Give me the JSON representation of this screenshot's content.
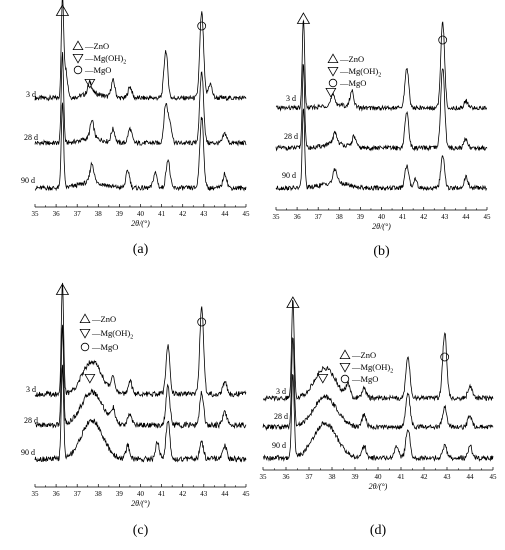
{
  "chart_data": [
    {
      "type": "line",
      "panel_caption": "(a)",
      "xlabel": "2θ/(°)",
      "xlim": [
        35,
        45
      ],
      "x_ticks": [
        "35",
        "36",
        "37",
        "38",
        "39",
        "40",
        "41",
        "42",
        "43",
        "44",
        "45"
      ],
      "series": [
        {
          "name": "3 d",
          "peaks": [
            [
              36.3,
              1.0
            ],
            [
              36.45,
              0.3
            ],
            [
              37.6,
              0.12
            ],
            [
              38.7,
              0.18
            ],
            [
              39.5,
              0.12
            ],
            [
              41.2,
              0.5
            ],
            [
              42.9,
              0.9
            ],
            [
              43.3,
              0.15
            ]
          ],
          "broad": [
            [
              37.7,
              0.05,
              0.45
            ]
          ]
        },
        {
          "name": "28 d",
          "peaks": [
            [
              36.3,
              0.95
            ],
            [
              37.7,
              0.18
            ],
            [
              38.7,
              0.14
            ],
            [
              39.5,
              0.15
            ],
            [
              41.2,
              0.4
            ],
            [
              41.4,
              0.2
            ],
            [
              42.9,
              0.75
            ],
            [
              44.0,
              0.1
            ]
          ],
          "broad": [
            [
              37.7,
              0.05,
              0.5
            ]
          ]
        },
        {
          "name": "90 d",
          "peaks": [
            [
              36.3,
              0.9
            ],
            [
              37.7,
              0.2
            ],
            [
              39.4,
              0.18
            ],
            [
              40.7,
              0.16
            ],
            [
              41.3,
              0.3
            ],
            [
              42.9,
              0.75
            ],
            [
              44.0,
              0.15
            ]
          ],
          "broad": [
            [
              37.7,
              0.06,
              0.6
            ]
          ]
        }
      ],
      "legend": [
        {
          "marker": "triangle-up",
          "label": "—ZnO"
        },
        {
          "marker": "triangle-down",
          "label": "—Mg(OH)",
          "sub": "2"
        },
        {
          "marker": "circle",
          "label": "—MgO"
        }
      ]
    },
    {
      "type": "line",
      "panel_caption": "(b)",
      "xlabel": "2θ/(°)",
      "xlim": [
        35,
        45
      ],
      "x_ticks": [
        "35",
        "36",
        "37",
        "38",
        "39",
        "40",
        "41",
        "42",
        "43",
        "44",
        "45"
      ],
      "series": [
        {
          "name": "3 d",
          "peaks": [
            [
              36.3,
              1.0
            ],
            [
              37.7,
              0.1
            ],
            [
              38.6,
              0.18
            ],
            [
              41.2,
              0.45
            ],
            [
              42.9,
              0.95
            ],
            [
              44.0,
              0.08
            ]
          ],
          "broad": [
            [
              37.8,
              0.04,
              0.5
            ]
          ]
        },
        {
          "name": "28 d",
          "peaks": [
            [
              36.3,
              0.95
            ],
            [
              37.8,
              0.12
            ],
            [
              38.7,
              0.12
            ],
            [
              41.2,
              0.4
            ],
            [
              42.9,
              0.9
            ],
            [
              44.0,
              0.1
            ]
          ],
          "broad": [
            [
              37.8,
              0.05,
              0.5
            ]
          ]
        },
        {
          "name": "90 d",
          "peaks": [
            [
              36.3,
              0.9
            ],
            [
              37.8,
              0.15
            ],
            [
              41.2,
              0.25
            ],
            [
              41.6,
              0.1
            ],
            [
              42.9,
              0.35
            ],
            [
              44.0,
              0.12
            ]
          ],
          "broad": [
            [
              37.8,
              0.06,
              0.6
            ]
          ]
        }
      ],
      "legend": [
        {
          "marker": "triangle-up",
          "label": "—ZnO"
        },
        {
          "marker": "triangle-down",
          "label": "—Mg(OH)",
          "sub": "2"
        },
        {
          "marker": "circle",
          "label": "—MgO"
        }
      ]
    },
    {
      "type": "line",
      "panel_caption": "(c)",
      "xlabel": "2θ/(°)",
      "xlim": [
        35,
        45
      ],
      "x_ticks": [
        "35",
        "36",
        "37",
        "38",
        "39",
        "40",
        "41",
        "42",
        "43",
        "44",
        "45"
      ],
      "series": [
        {
          "name": "3 d",
          "peaks": [
            [
              36.3,
              1.0
            ],
            [
              38.7,
              0.15
            ],
            [
              39.5,
              0.12
            ],
            [
              41.3,
              0.45
            ],
            [
              42.9,
              0.8
            ],
            [
              44.0,
              0.12
            ]
          ],
          "broad": [
            [
              37.7,
              0.3,
              0.45
            ]
          ]
        },
        {
          "name": "28 d",
          "peaks": [
            [
              36.3,
              0.9
            ],
            [
              38.7,
              0.12
            ],
            [
              39.5,
              0.1
            ],
            [
              41.3,
              0.35
            ],
            [
              42.9,
              0.3
            ],
            [
              44.0,
              0.12
            ]
          ],
          "broad": [
            [
              37.7,
              0.3,
              0.5
            ]
          ]
        },
        {
          "name": "90 d",
          "peaks": [
            [
              36.3,
              0.85
            ],
            [
              39.4,
              0.12
            ],
            [
              40.8,
              0.15
            ],
            [
              41.3,
              0.35
            ],
            [
              42.9,
              0.15
            ],
            [
              44.0,
              0.12
            ]
          ],
          "broad": [
            [
              37.7,
              0.35,
              0.5
            ]
          ]
        }
      ],
      "legend": [
        {
          "marker": "triangle-up",
          "label": "—ZnO"
        },
        {
          "marker": "triangle-down",
          "label": "—Mg(OH)",
          "sub": "2"
        },
        {
          "marker": "circle",
          "label": "—MgO"
        }
      ]
    },
    {
      "type": "line",
      "panel_caption": "(d)",
      "xlabel": "2θ/(°)",
      "xlim": [
        35,
        45
      ],
      "x_ticks": [
        "35",
        "36",
        "37",
        "38",
        "39",
        "40",
        "41",
        "42",
        "43",
        "44",
        "45"
      ],
      "series": [
        {
          "name": "3 d",
          "peaks": [
            [
              36.3,
              1.0
            ],
            [
              38.7,
              0.12
            ],
            [
              39.4,
              0.1
            ],
            [
              41.3,
              0.4
            ],
            [
              42.9,
              0.65
            ],
            [
              44.0,
              0.12
            ]
          ],
          "broad": [
            [
              37.7,
              0.3,
              0.45
            ]
          ]
        },
        {
          "name": "28 d",
          "peaks": [
            [
              36.3,
              0.9
            ],
            [
              39.4,
              0.12
            ],
            [
              41.3,
              0.35
            ],
            [
              42.9,
              0.2
            ],
            [
              44.0,
              0.12
            ]
          ],
          "broad": [
            [
              37.7,
              0.3,
              0.5
            ]
          ]
        },
        {
          "name": "90 d",
          "peaks": [
            [
              36.3,
              0.85
            ],
            [
              39.4,
              0.12
            ],
            [
              40.8,
              0.12
            ],
            [
              41.3,
              0.3
            ],
            [
              42.9,
              0.12
            ],
            [
              44.0,
              0.12
            ]
          ],
          "broad": [
            [
              37.7,
              0.35,
              0.5
            ]
          ]
        }
      ],
      "legend": [
        {
          "marker": "triangle-up",
          "label": "—ZnO"
        },
        {
          "marker": "triangle-down",
          "label": "—Mg(OH)",
          "sub": "2"
        },
        {
          "marker": "circle",
          "label": "—MgO"
        }
      ]
    }
  ]
}
